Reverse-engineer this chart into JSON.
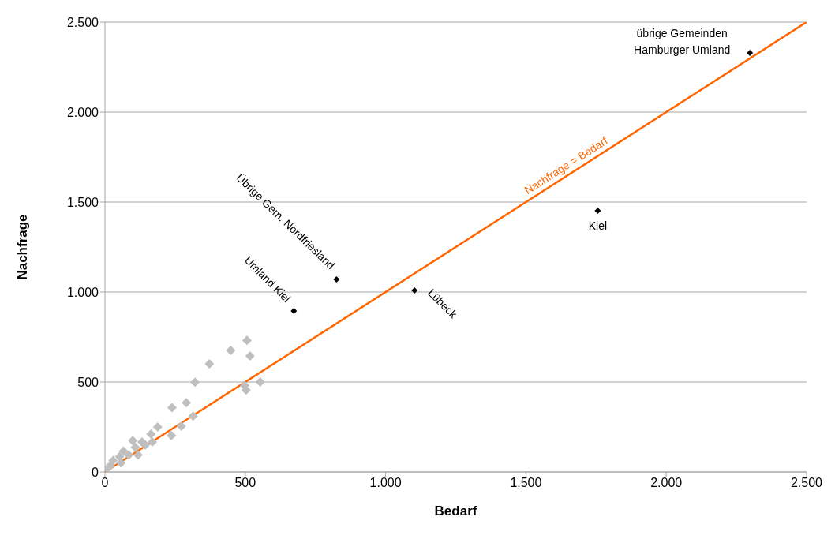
{
  "chart_data": {
    "type": "scatter",
    "xlabel": "Bedarf",
    "ylabel": "Nachfrage",
    "xlim": [
      0,
      2500
    ],
    "ylim": [
      0,
      2500
    ],
    "xticks": [
      0,
      500,
      {
        "value": 1000,
        "label": "1.000"
      },
      {
        "value": 1500,
        "label": "1.500"
      },
      {
        "value": 2000,
        "label": "2.000"
      },
      {
        "value": 2500,
        "label": "2.500"
      }
    ],
    "yticks": [
      0,
      500,
      {
        "value": 1000,
        "label": "1.000"
      },
      {
        "value": 1500,
        "label": "1.500"
      },
      {
        "value": 2000,
        "label": "2.000"
      },
      {
        "value": 2500,
        "label": "2.500"
      }
    ],
    "grid": "y",
    "marker": "diamond",
    "legend": false,
    "series": [
      {
        "color": "#bfbfbf",
        "x": [
          506,
          448,
          517,
          372,
          321,
          553,
          498,
          503,
          290,
          239,
          314,
          188,
          272,
          237,
          164,
          169,
          132,
          99,
          108,
          118,
          66,
          52,
          57,
          29,
          19,
          9,
          144,
          85
        ],
        "values": [
          731,
          675,
          645,
          601,
          499,
          500,
          480,
          455,
          385,
          357,
          310,
          250,
          254,
          203,
          211,
          167,
          167,
          174,
          137,
          94,
          116,
          86,
          50,
          64,
          35,
          20,
          150,
          94
        ]
      },
      {
        "color": "#000000",
        "x": [
          673,
          825,
          1103,
          1756,
          2298
        ],
        "values": [
          895,
          1070,
          1009,
          1452,
          2329
        ]
      },
      {
        "type": "line",
        "color": "#ff6600",
        "marker": "none",
        "x": [
          0,
          2500
        ],
        "values": [
          0,
          2500
        ]
      }
    ],
    "annotations": [
      {
        "text": "Übrige Gem. Nordfriesland",
        "x": 825,
        "y": 1070
      },
      {
        "text": "Umland Kiel",
        "x": 673,
        "y": 895
      },
      {
        "text": "Lübeck",
        "x": 1103,
        "y": 1009
      },
      {
        "text": "Kiel",
        "x": 1756,
        "y": 1452
      },
      {
        "text": "übrige Gemeinden\nHamburger Umland",
        "x": 2298,
        "y": 2329
      },
      {
        "text": "Nachfrage = Bedarf",
        "x": 1650,
        "y": 1650
      }
    ]
  }
}
